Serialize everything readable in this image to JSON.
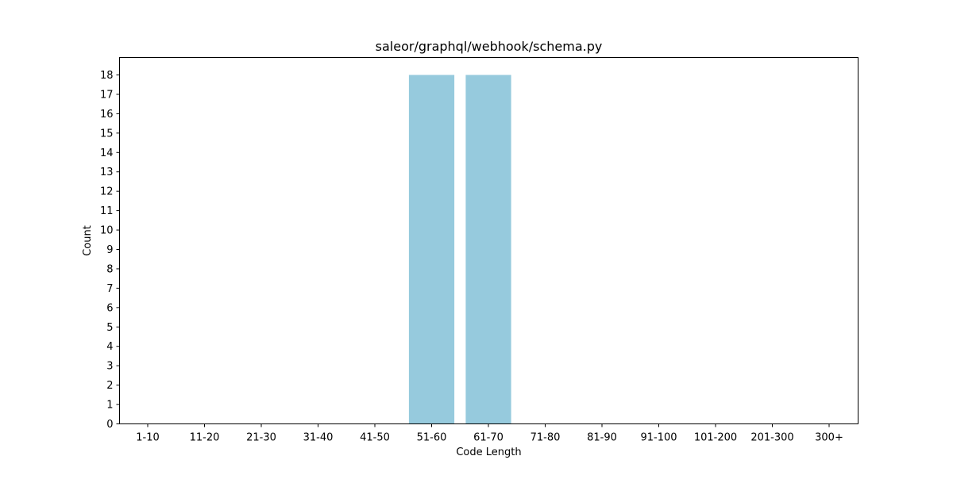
{
  "chart_data": {
    "type": "bar",
    "title": "saleor/graphql/webhook/schema.py",
    "xlabel": "Code Length",
    "ylabel": "Count",
    "categories": [
      "1-10",
      "11-20",
      "21-30",
      "31-40",
      "41-50",
      "51-60",
      "61-70",
      "71-80",
      "81-90",
      "91-100",
      "101-200",
      "201-300",
      "300+"
    ],
    "values": [
      0,
      0,
      0,
      0,
      0,
      18,
      18,
      0,
      0,
      0,
      0,
      0,
      0
    ],
    "ylim": [
      0,
      18.9
    ],
    "yticks": [
      0,
      1,
      2,
      3,
      4,
      5,
      6,
      7,
      8,
      9,
      10,
      11,
      12,
      13,
      14,
      15,
      16,
      17,
      18
    ],
    "grid": false,
    "bar_color": "#96cadd"
  }
}
